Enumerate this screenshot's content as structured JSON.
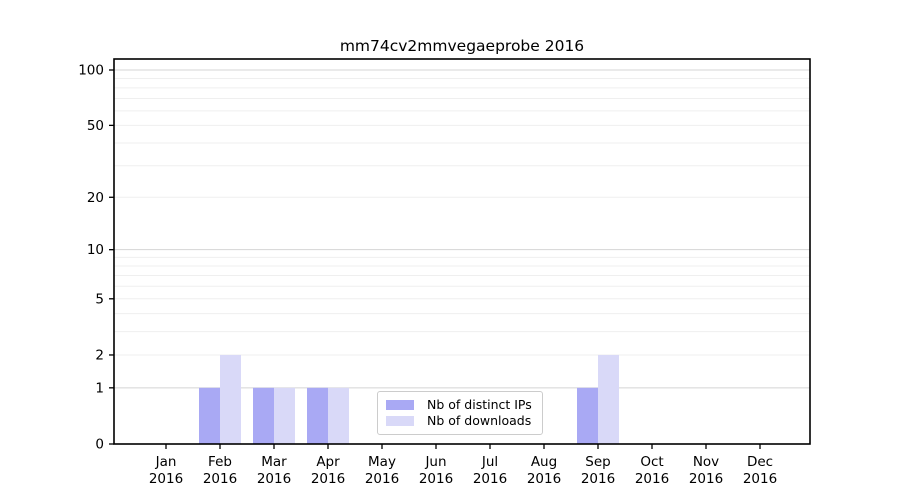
{
  "chart_data": {
    "type": "bar",
    "title": "mm74cv2mmvegaeprobe 2016",
    "categories": [
      {
        "month": "Jan",
        "year": "2016"
      },
      {
        "month": "Feb",
        "year": "2016"
      },
      {
        "month": "Mar",
        "year": "2016"
      },
      {
        "month": "Apr",
        "year": "2016"
      },
      {
        "month": "May",
        "year": "2016"
      },
      {
        "month": "Jun",
        "year": "2016"
      },
      {
        "month": "Jul",
        "year": "2016"
      },
      {
        "month": "Aug",
        "year": "2016"
      },
      {
        "month": "Sep",
        "year": "2016"
      },
      {
        "month": "Oct",
        "year": "2016"
      },
      {
        "month": "Nov",
        "year": "2016"
      },
      {
        "month": "Dec",
        "year": "2016"
      }
    ],
    "series": [
      {
        "name": "Nb of distinct IPs",
        "color": "#a9a9f4",
        "values": [
          0,
          1,
          1,
          1,
          0,
          0,
          0,
          0,
          1,
          0,
          0,
          0
        ]
      },
      {
        "name": "Nb of downloads",
        "color": "#d9d9f8",
        "values": [
          0,
          2,
          1,
          1,
          0,
          0,
          0,
          0,
          2,
          0,
          0,
          0
        ]
      }
    ],
    "xlabel": "",
    "ylabel": "",
    "yscale": "log1p",
    "ylim": [
      0,
      115
    ],
    "yticks": [
      0,
      1,
      2,
      5,
      10,
      20,
      50,
      100
    ],
    "grid": {
      "on": true,
      "major_lines": [
        1,
        10,
        100
      ],
      "minor_lines": [
        2,
        3,
        4,
        5,
        6,
        7,
        8,
        9,
        20,
        30,
        40,
        50,
        60,
        70,
        80,
        90
      ]
    },
    "legend": {
      "position": "inside-bottom-center",
      "entries": [
        "Nb of distinct IPs",
        "Nb of downloads"
      ]
    }
  }
}
